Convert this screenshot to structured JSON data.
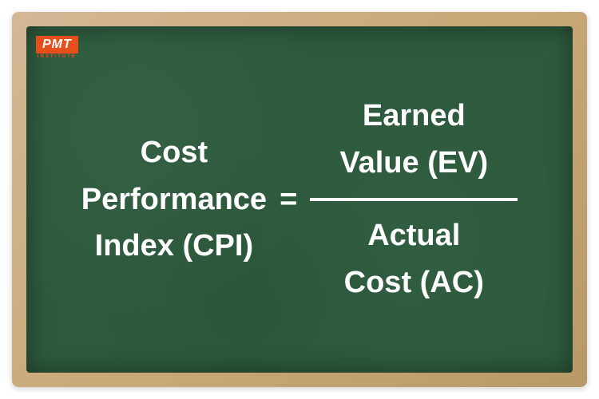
{
  "logo": {
    "main": "PMT",
    "sub": "INSTITUTE",
    "bg_color": "#e84e1b",
    "text_color": "#ffffff"
  },
  "chalkboard": {
    "frame_color": "#c9a977",
    "board_color": "#2d5a3d",
    "text_color": "#ffffff"
  },
  "formula": {
    "type": "fraction-equation",
    "lhs_line1": "Cost",
    "lhs_line2": "Performance",
    "lhs_line3": "Index (CPI)",
    "equals": "=",
    "numerator_line1": "Earned",
    "numerator_line2": "Value (EV)",
    "denominator_line1": "Actual",
    "denominator_line2": "Cost (AC)",
    "font_size": 38,
    "font_weight": 700,
    "fraction_bar_width": 260,
    "fraction_bar_height": 4
  }
}
